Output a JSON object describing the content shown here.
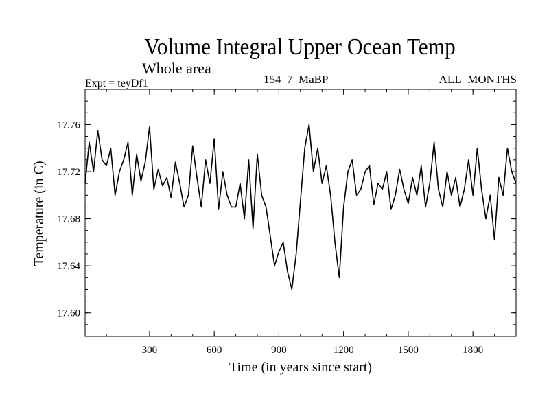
{
  "chart_data": {
    "type": "line",
    "title": "Volume Integral Upper Ocean Temp",
    "subtitle": "Whole area",
    "experiment_label": "Expt = teyDf1",
    "run_label": "154_7_MaBP",
    "months_label": "ALL_MONTHS",
    "xlabel": "Time (in years since start)",
    "ylabel": "Temperature (in C)",
    "xlim": [
      1,
      2000
    ],
    "ylim": [
      17.58,
      17.79
    ],
    "x_ticks": [
      300,
      600,
      900,
      1200,
      1500,
      1800
    ],
    "x_tick_labels": [
      "300",
      "600",
      "900",
      "1200",
      "1500",
      "1800"
    ],
    "y_ticks": [
      17.6,
      17.64,
      17.68,
      17.72,
      17.76
    ],
    "y_tick_labels": [
      "17.60",
      "17.64",
      "17.68",
      "17.72",
      "17.76"
    ],
    "grid": false,
    "line_color": "#000000",
    "series": [
      {
        "name": "Volume Integral Upper Ocean Temp",
        "x": [
          1,
          20,
          40,
          60,
          80,
          100,
          120,
          140,
          160,
          180,
          200,
          220,
          240,
          260,
          280,
          300,
          320,
          340,
          360,
          380,
          400,
          420,
          440,
          460,
          480,
          500,
          520,
          540,
          560,
          580,
          600,
          620,
          640,
          660,
          680,
          700,
          720,
          740,
          760,
          780,
          800,
          820,
          840,
          860,
          880,
          900,
          920,
          940,
          960,
          980,
          1000,
          1020,
          1040,
          1060,
          1080,
          1100,
          1120,
          1140,
          1160,
          1180,
          1200,
          1220,
          1240,
          1260,
          1280,
          1300,
          1320,
          1340,
          1360,
          1380,
          1400,
          1420,
          1440,
          1460,
          1480,
          1500,
          1520,
          1540,
          1560,
          1580,
          1600,
          1620,
          1640,
          1660,
          1680,
          1700,
          1720,
          1740,
          1760,
          1780,
          1800,
          1820,
          1840,
          1860,
          1880,
          1900,
          1920,
          1940,
          1960,
          1980,
          2000
        ],
        "values": [
          17.71,
          17.745,
          17.72,
          17.755,
          17.73,
          17.725,
          17.74,
          17.7,
          17.72,
          17.73,
          17.745,
          17.7,
          17.735,
          17.712,
          17.728,
          17.758,
          17.705,
          17.722,
          17.708,
          17.715,
          17.698,
          17.728,
          17.71,
          17.69,
          17.7,
          17.742,
          17.715,
          17.69,
          17.73,
          17.71,
          17.748,
          17.688,
          17.72,
          17.7,
          17.69,
          17.69,
          17.71,
          17.68,
          17.73,
          17.672,
          17.735,
          17.7,
          17.69,
          17.665,
          17.64,
          17.652,
          17.66,
          17.635,
          17.62,
          17.65,
          17.695,
          17.74,
          17.76,
          17.72,
          17.74,
          17.71,
          17.725,
          17.7,
          17.66,
          17.63,
          17.69,
          17.72,
          17.73,
          17.7,
          17.705,
          17.72,
          17.725,
          17.692,
          17.71,
          17.705,
          17.72,
          17.688,
          17.7,
          17.722,
          17.705,
          17.693,
          17.715,
          17.7,
          17.725,
          17.69,
          17.71,
          17.745,
          17.705,
          17.69,
          17.72,
          17.7,
          17.715,
          17.69,
          17.705,
          17.73,
          17.7,
          17.74,
          17.705,
          17.68,
          17.7,
          17.662,
          17.715,
          17.7,
          17.74,
          17.72,
          17.71
        ]
      }
    ]
  }
}
